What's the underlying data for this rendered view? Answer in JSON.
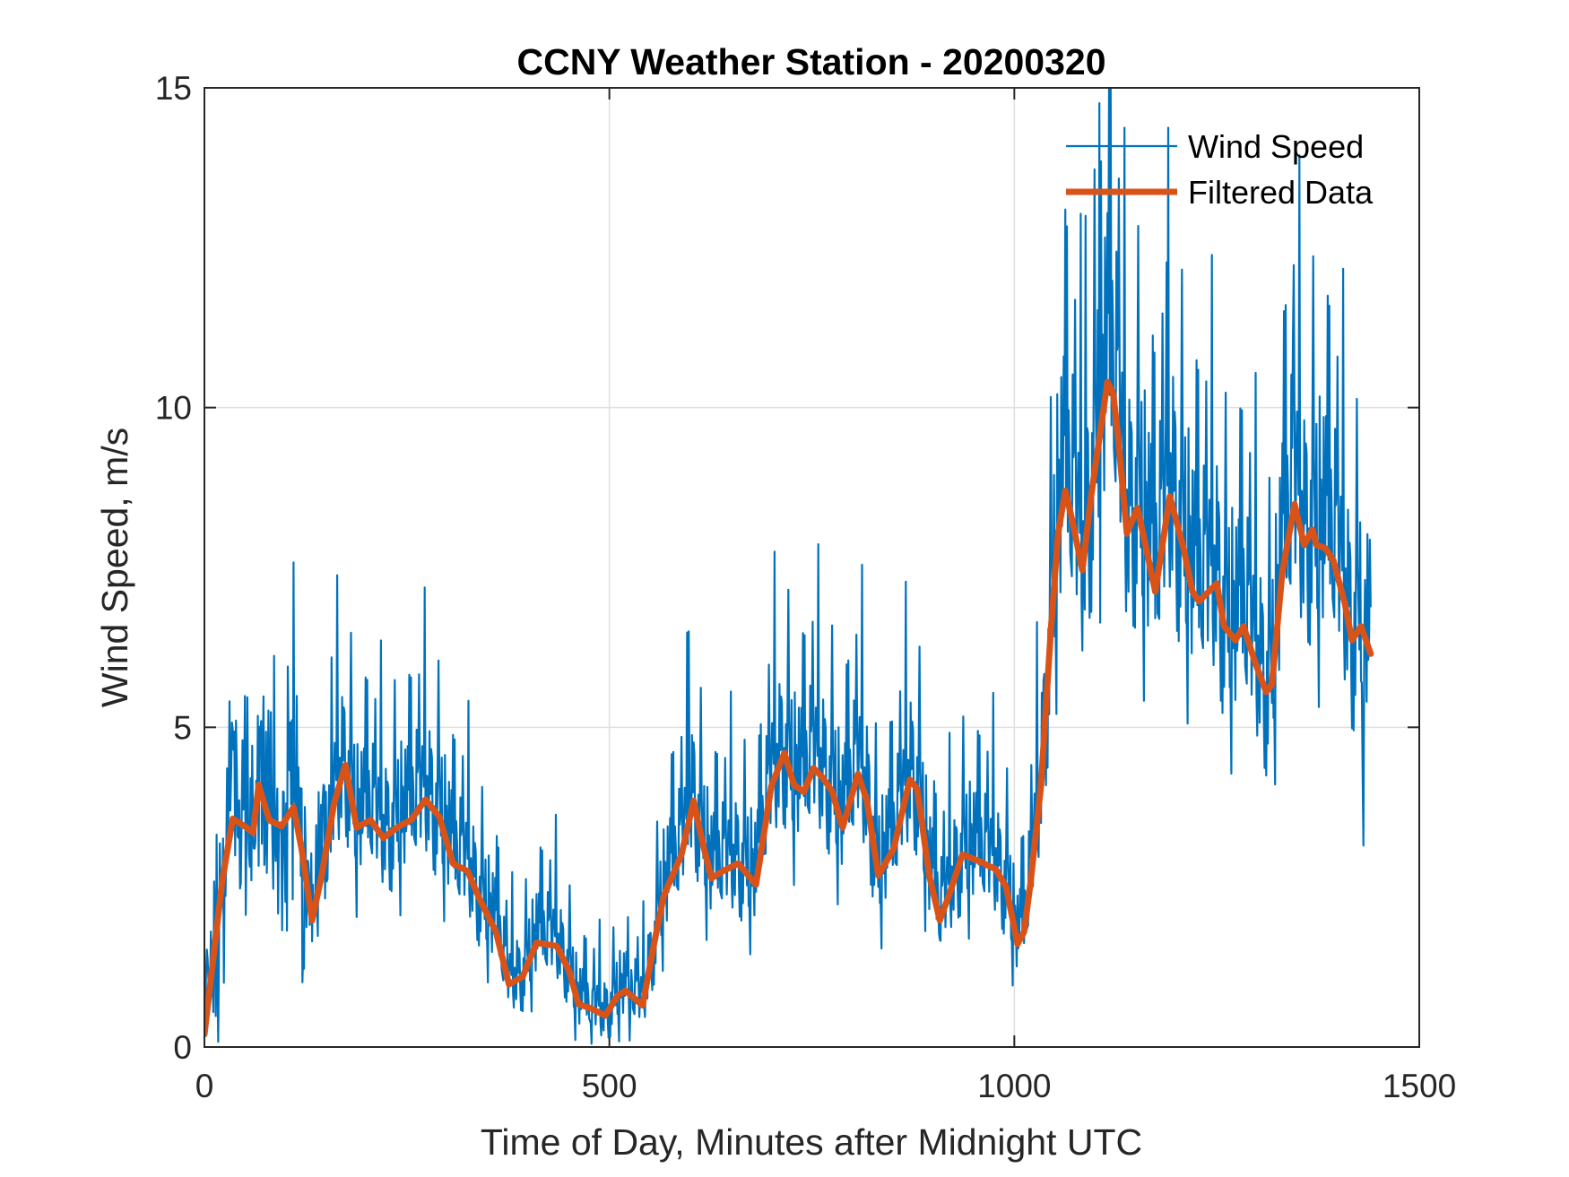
{
  "chart_data": {
    "type": "line",
    "title": "CCNY Weather Station - 20200320",
    "xlabel": "Time of Day, Minutes after Midnight UTC",
    "ylabel": "Wind Speed, m/s",
    "xlim": [
      0,
      1500
    ],
    "ylim": [
      0,
      15
    ],
    "xticks": [
      0,
      500,
      1000,
      1500
    ],
    "yticks": [
      0,
      5,
      10,
      15
    ],
    "xtick_labels": [
      "0",
      "500",
      "1000",
      "1500"
    ],
    "ytick_labels": [
      "0",
      "5",
      "10",
      "15"
    ],
    "grid": true,
    "legend_position": "top-right",
    "legend": [
      "Wind Speed",
      "Filtered Data"
    ],
    "series": [
      {
        "name": "Wind Speed",
        "color": "#0072BD",
        "style": "thin-line",
        "x_range": [
          0,
          1440
        ],
        "sampling_minutes": 1,
        "note_envelope": "noisy 1-minute samples around the filtered curve; notable extremes listed",
        "extremes": [
          {
            "x": 1105,
            "y": 14.76
          },
          {
            "x": 1107,
            "y": 13.85
          },
          {
            "x": 1088,
            "y": 13.0
          },
          {
            "x": 1188,
            "y": 12.27
          },
          {
            "x": 1344,
            "y": 11.1
          },
          {
            "x": 598,
            "y": 6.5
          },
          {
            "x": 103,
            "y": 5.95
          },
          {
            "x": 1431,
            "y": 3.15
          },
          {
            "x": 478,
            "y": 0.05
          },
          {
            "x": 525,
            "y": 0.1
          }
        ]
      },
      {
        "name": "Filtered Data",
        "color": "#D95319",
        "style": "thick-line",
        "x": [
          0,
          12,
          22,
          35,
          50,
          60,
          67,
          80,
          95,
          110,
          120,
          133,
          145,
          160,
          174,
          188,
          205,
          221,
          240,
          255,
          273,
          290,
          307,
          325,
          340,
          360,
          376,
          393,
          410,
          435,
          450,
          462,
          478,
          495,
          510,
          520,
          541,
          555,
          567,
          589,
          604,
          615,
          626,
          640,
          659,
          681,
          700,
          716,
          728,
          740,
          752,
          763,
          775,
          788,
          807,
          818,
          832,
          851,
          871,
          880,
          895,
          908,
          920,
          936,
          954,
          977,
          990,
          1004,
          1012,
          1020,
          1033,
          1045,
          1054,
          1063,
          1072,
          1084,
          1095,
          1115,
          1122,
          1128,
          1139,
          1152,
          1161,
          1174,
          1192,
          1209,
          1220,
          1228,
          1250,
          1259,
          1273,
          1283,
          1297,
          1311,
          1318,
          1331,
          1346,
          1358,
          1368,
          1373,
          1384,
          1394,
          1408,
          1417,
          1428,
          1440
        ],
        "y": [
          0.2,
          1.5,
          2.6,
          3.57,
          3.45,
          3.35,
          4.1,
          3.55,
          3.45,
          3.75,
          3.1,
          1.98,
          2.7,
          3.8,
          4.41,
          3.43,
          3.55,
          3.27,
          3.45,
          3.55,
          3.87,
          3.6,
          2.87,
          2.75,
          2.31,
          1.8,
          0.98,
          1.1,
          1.63,
          1.58,
          1.2,
          0.67,
          0.6,
          0.49,
          0.8,
          0.88,
          0.65,
          1.6,
          2.36,
          3.01,
          3.85,
          3.2,
          2.64,
          2.75,
          2.87,
          2.54,
          4.08,
          4.6,
          4.1,
          3.99,
          4.36,
          4.22,
          4.0,
          3.43,
          4.27,
          3.85,
          2.68,
          3.1,
          4.18,
          4.04,
          2.68,
          1.98,
          2.4,
          3.01,
          2.92,
          2.78,
          2.5,
          1.61,
          1.8,
          2.57,
          4.09,
          6.5,
          8.03,
          8.7,
          8.21,
          7.46,
          8.64,
          10.4,
          10.23,
          9.55,
          8.03,
          8.43,
          7.91,
          7.12,
          8.61,
          7.8,
          7.12,
          6.97,
          7.25,
          6.58,
          6.36,
          6.58,
          6.03,
          5.55,
          5.67,
          7.43,
          8.49,
          7.85,
          8.09,
          7.85,
          7.8,
          7.61,
          6.94,
          6.36,
          6.58,
          6.15
        ]
      }
    ]
  }
}
